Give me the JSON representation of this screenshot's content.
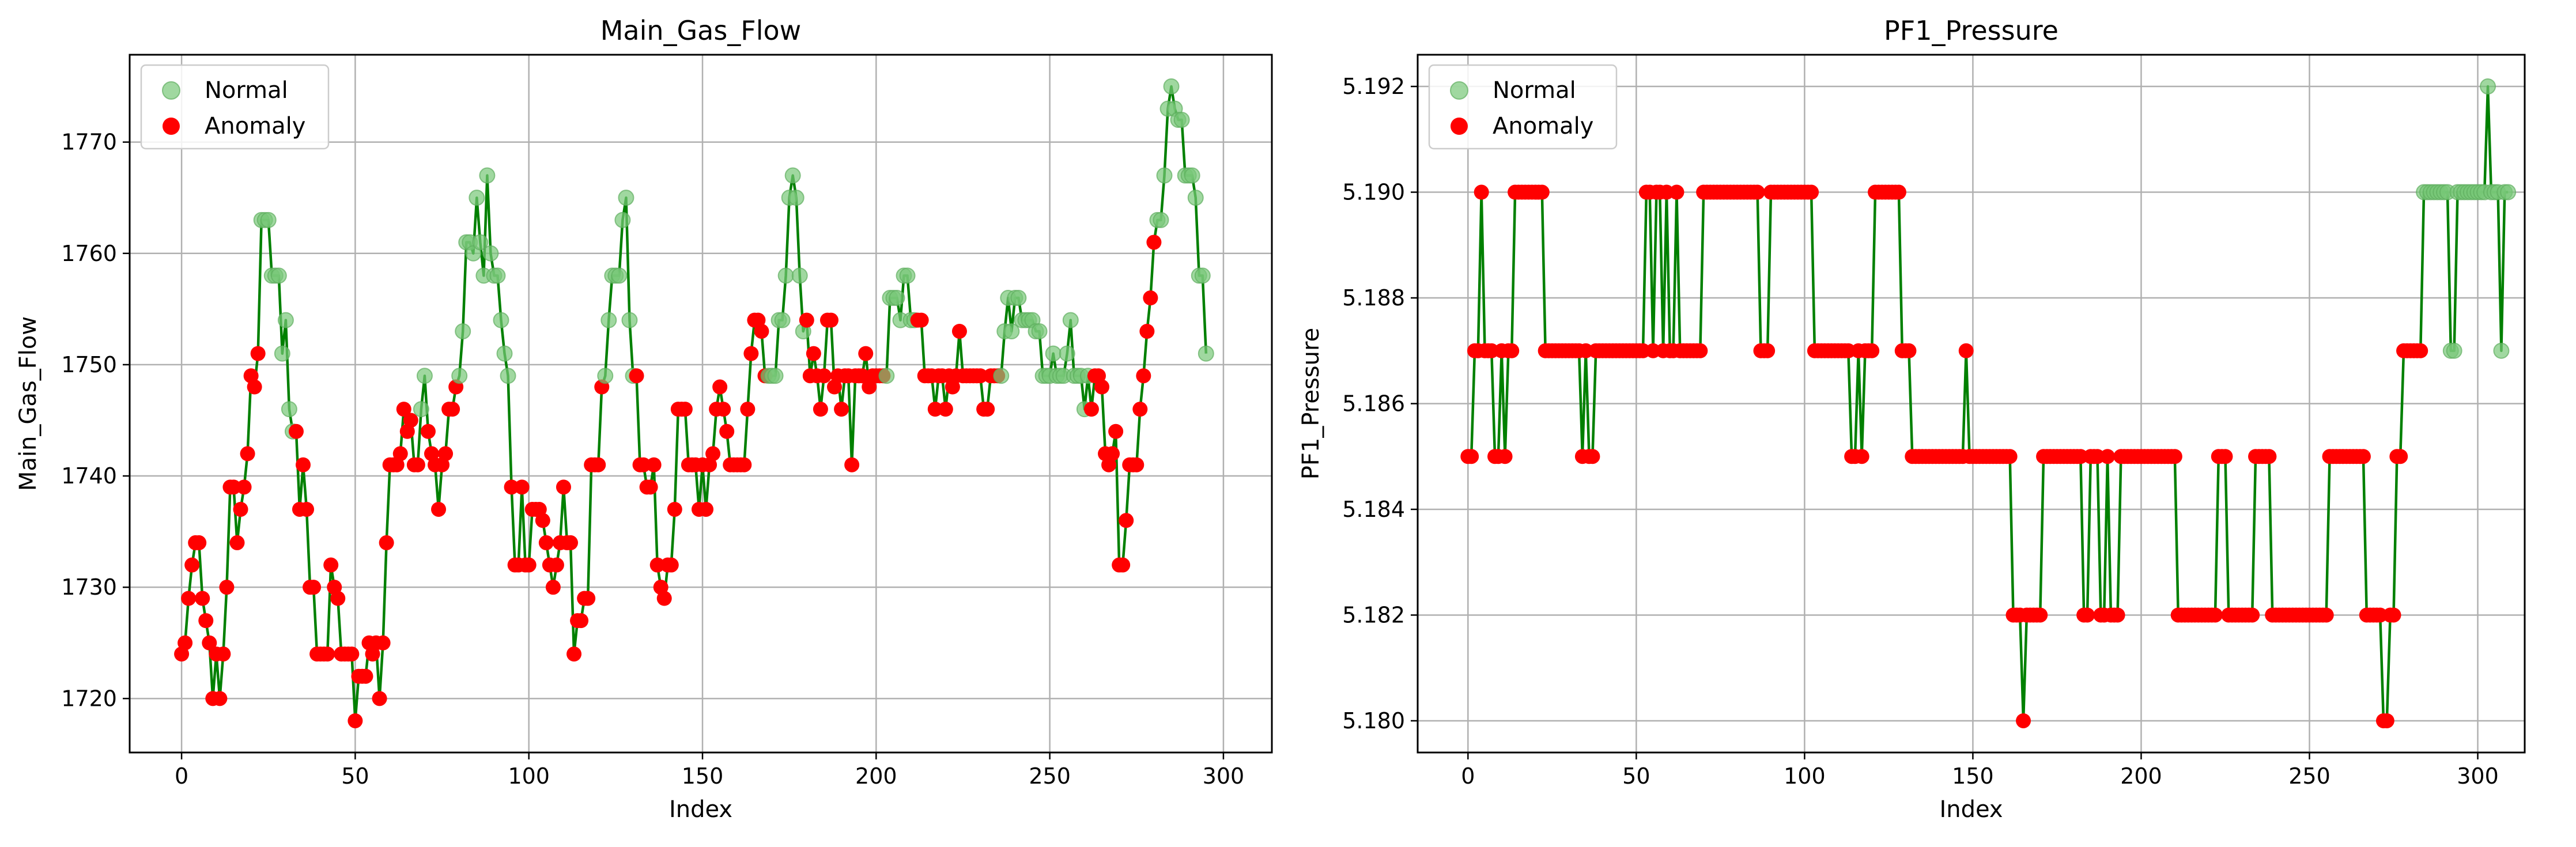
{
  "colors": {
    "line": "#008000",
    "normal": "#78c878",
    "anomaly": "#ff0000",
    "grid": "#b0b0b0"
  },
  "legend": {
    "normal": "Normal",
    "anomaly": "Anomaly"
  },
  "chart_data": [
    {
      "type": "line",
      "title": "Main_Gas_Flow",
      "xlabel": "Index",
      "ylabel": "Main_Gas_Flow",
      "xlim": [
        -14.95,
        313.95
      ],
      "ylim": [
        1715.15,
        1777.85
      ],
      "xticks": [
        0,
        50,
        100,
        150,
        200,
        250,
        300
      ],
      "yticks": [
        1720,
        1730,
        1740,
        1750,
        1760,
        1770
      ],
      "grid": true,
      "legend_position": "top-left",
      "x_start": 0,
      "values": [
        1724,
        1725,
        1729,
        1732,
        1734,
        1734,
        1729,
        1727,
        1725,
        1720,
        1724,
        1720,
        1724,
        1730,
        1739,
        1739,
        1734,
        1737,
        1739,
        1742,
        1749,
        1748,
        1751,
        1763,
        1763,
        1763,
        1758,
        1758,
        1758,
        1751,
        1754,
        1746,
        1744,
        1744,
        1737,
        1741,
        1737,
        1730,
        1730,
        1724,
        1724,
        1724,
        1724,
        1732,
        1730,
        1729,
        1724,
        1724,
        1724,
        1724,
        1718,
        1722,
        1722,
        1722,
        1725,
        1724,
        1725,
        1720,
        1725,
        1734,
        1741,
        1741,
        1741,
        1742,
        1746,
        1744,
        1745,
        1741,
        1741,
        1746,
        1749,
        1744,
        1742,
        1741,
        1737,
        1741,
        1742,
        1746,
        1746,
        1748,
        1749,
        1753,
        1761,
        1761,
        1760,
        1765,
        1761,
        1758,
        1767,
        1760,
        1758,
        1758,
        1754,
        1751,
        1749,
        1739,
        1732,
        1732,
        1739,
        1732,
        1732,
        1737,
        1737,
        1737,
        1736,
        1734,
        1732,
        1730,
        1732,
        1734,
        1739,
        1734,
        1734,
        1724,
        1727,
        1727,
        1729,
        1729,
        1741,
        1741,
        1741,
        1748,
        1749,
        1754,
        1758,
        1758,
        1758,
        1763,
        1765,
        1754,
        1749,
        1749,
        1741,
        1741,
        1739,
        1739,
        1741,
        1732,
        1730,
        1729,
        1732,
        1732,
        1737,
        1746,
        1746,
        1746,
        1741,
        1741,
        1741,
        1737,
        1741,
        1737,
        1741,
        1742,
        1746,
        1748,
        1746,
        1744,
        1741,
        1741,
        1741,
        1741,
        1741,
        1746,
        1751,
        1754,
        1754,
        1753,
        1749,
        1749,
        1749,
        1749,
        1754,
        1754,
        1758,
        1765,
        1767,
        1765,
        1758,
        1753,
        1754,
        1749,
        1751,
        1749,
        1746,
        1749,
        1754,
        1754,
        1748,
        1749,
        1746,
        1749,
        1749,
        1741,
        1749,
        1749,
        1749,
        1751,
        1748,
        1749,
        1749,
        1749,
        1749,
        1749,
        1756,
        1756,
        1756,
        1754,
        1758,
        1758,
        1754,
        1754,
        1754,
        1754,
        1749,
        1749,
        1749,
        1746,
        1749,
        1749,
        1746,
        1749,
        1748,
        1749,
        1753,
        1749,
        1749,
        1749,
        1749,
        1749,
        1749,
        1746,
        1746,
        1749,
        1749,
        1749,
        1749,
        1753,
        1756,
        1753,
        1756,
        1756,
        1754,
        1754,
        1754,
        1754,
        1753,
        1753,
        1749,
        1749,
        1749,
        1751,
        1749,
        1749,
        1749,
        1751,
        1754,
        1749,
        1749,
        1749,
        1746,
        1749,
        1746,
        1749,
        1749,
        1748,
        1742,
        1741,
        1742,
        1744,
        1732,
        1732,
        1736,
        1741,
        1741,
        1741,
        1746,
        1749,
        1753,
        1756,
        1761,
        1763,
        1763,
        1767,
        1773,
        1775,
        1773,
        1772,
        1772,
        1767,
        1767,
        1767,
        1765,
        1758,
        1758,
        1751
      ],
      "anomaly_indices": [
        0,
        1,
        2,
        3,
        4,
        5,
        6,
        7,
        8,
        9,
        10,
        11,
        12,
        13,
        14,
        15,
        16,
        17,
        18,
        19,
        20,
        21,
        22,
        33,
        34,
        35,
        36,
        37,
        38,
        39,
        40,
        41,
        42,
        43,
        44,
        45,
        46,
        47,
        48,
        49,
        50,
        51,
        52,
        53,
        54,
        55,
        56,
        57,
        58,
        59,
        60,
        61,
        62,
        63,
        64,
        65,
        66,
        67,
        68,
        71,
        72,
        73,
        74,
        75,
        76,
        77,
        78,
        79,
        95,
        96,
        97,
        98,
        99,
        100,
        101,
        102,
        103,
        104,
        105,
        106,
        107,
        108,
        109,
        110,
        111,
        112,
        113,
        114,
        115,
        116,
        117,
        118,
        119,
        120,
        121,
        131,
        132,
        133,
        134,
        135,
        136,
        137,
        138,
        139,
        140,
        141,
        142,
        143,
        144,
        145,
        146,
        147,
        148,
        149,
        150,
        151,
        152,
        153,
        154,
        155,
        156,
        157,
        158,
        159,
        160,
        161,
        162,
        163,
        164,
        165,
        166,
        167,
        168,
        180,
        181,
        182,
        183,
        184,
        185,
        186,
        187,
        188,
        189,
        190,
        191,
        192,
        193,
        194,
        195,
        196,
        197,
        198,
        199,
        200,
        201,
        202,
        212,
        213,
        214,
        215,
        216,
        217,
        218,
        219,
        220,
        221,
        222,
        223,
        224,
        225,
        226,
        227,
        228,
        229,
        230,
        231,
        232,
        233,
        234,
        235,
        262,
        263,
        264,
        265,
        266,
        267,
        268,
        269,
        270,
        271,
        272,
        273,
        274,
        275,
        276,
        277,
        278,
        279,
        280
      ]
    },
    {
      "type": "line",
      "title": "PF1_Pressure",
      "xlabel": "Index",
      "ylabel": "PF1_Pressure",
      "xlim": [
        -14.95,
        313.95
      ],
      "ylim": [
        5.1794,
        5.1926
      ],
      "xticks": [
        0,
        50,
        100,
        150,
        200,
        250,
        300
      ],
      "yticks": [
        5.18,
        5.182,
        5.184,
        5.186,
        5.188,
        5.19,
        5.192
      ],
      "yticks_labels": [
        "5.180",
        "5.182",
        "5.184",
        "5.186",
        "5.188",
        "5.190",
        "5.192"
      ],
      "grid": true,
      "legend_position": "top-left",
      "x_start": 0,
      "values": [
        5.185,
        5.185,
        5.187,
        5.187,
        5.19,
        5.187,
        5.187,
        5.187,
        5.185,
        5.185,
        5.187,
        5.185,
        5.187,
        5.187,
        5.19,
        5.19,
        5.19,
        5.19,
        5.19,
        5.19,
        5.19,
        5.19,
        5.19,
        5.187,
        5.187,
        5.187,
        5.187,
        5.187,
        5.187,
        5.187,
        5.187,
        5.187,
        5.187,
        5.187,
        5.185,
        5.187,
        5.185,
        5.185,
        5.187,
        5.187,
        5.187,
        5.187,
        5.187,
        5.187,
        5.187,
        5.187,
        5.187,
        5.187,
        5.187,
        5.187,
        5.187,
        5.187,
        5.187,
        5.19,
        5.19,
        5.187,
        5.19,
        5.19,
        5.187,
        5.19,
        5.187,
        5.187,
        5.19,
        5.187,
        5.187,
        5.187,
        5.187,
        5.187,
        5.187,
        5.187,
        5.19,
        5.19,
        5.19,
        5.19,
        5.19,
        5.19,
        5.19,
        5.19,
        5.19,
        5.19,
        5.19,
        5.19,
        5.19,
        5.19,
        5.19,
        5.19,
        5.19,
        5.187,
        5.187,
        5.187,
        5.19,
        5.19,
        5.19,
        5.19,
        5.19,
        5.19,
        5.19,
        5.19,
        5.19,
        5.19,
        5.19,
        5.19,
        5.19,
        5.187,
        5.187,
        5.187,
        5.187,
        5.187,
        5.187,
        5.187,
        5.187,
        5.187,
        5.187,
        5.187,
        5.185,
        5.185,
        5.187,
        5.185,
        5.187,
        5.187,
        5.187,
        5.19,
        5.19,
        5.19,
        5.19,
        5.19,
        5.19,
        5.19,
        5.19,
        5.187,
        5.187,
        5.187,
        5.185,
        5.185,
        5.185,
        5.185,
        5.185,
        5.185,
        5.185,
        5.185,
        5.185,
        5.185,
        5.185,
        5.185,
        5.185,
        5.185,
        5.185,
        5.185,
        5.187,
        5.185,
        5.185,
        5.185,
        5.185,
        5.185,
        5.185,
        5.185,
        5.185,
        5.185,
        5.185,
        5.185,
        5.185,
        5.185,
        5.182,
        5.182,
        5.182,
        5.18,
        5.182,
        5.182,
        5.182,
        5.182,
        5.182,
        5.185,
        5.185,
        5.185,
        5.185,
        5.185,
        5.185,
        5.185,
        5.185,
        5.185,
        5.185,
        5.185,
        5.185,
        5.182,
        5.182,
        5.185,
        5.185,
        5.185,
        5.182,
        5.182,
        5.185,
        5.182,
        5.182,
        5.182,
        5.185,
        5.185,
        5.185,
        5.185,
        5.185,
        5.185,
        5.185,
        5.185,
        5.185,
        5.185,
        5.185,
        5.185,
        5.185,
        5.185,
        5.185,
        5.185,
        5.185,
        5.182,
        5.182,
        5.182,
        5.182,
        5.182,
        5.182,
        5.182,
        5.182,
        5.182,
        5.182,
        5.182,
        5.182,
        5.185,
        5.185,
        5.185,
        5.182,
        5.182,
        5.182,
        5.182,
        5.182,
        5.182,
        5.182,
        5.182,
        5.185,
        5.185,
        5.185,
        5.185,
        5.185,
        5.182,
        5.182,
        5.182,
        5.182,
        5.182,
        5.182,
        5.182,
        5.182,
        5.182,
        5.182,
        5.182,
        5.182,
        5.182,
        5.182,
        5.182,
        5.182,
        5.182,
        5.185,
        5.185,
        5.185,
        5.185,
        5.185,
        5.185,
        5.185,
        5.185,
        5.185,
        5.185,
        5.185,
        5.182,
        5.182,
        5.182,
        5.182,
        5.182,
        5.18,
        5.18,
        5.182,
        5.182,
        5.185,
        5.185,
        5.187,
        5.187,
        5.187,
        5.187,
        5.187,
        5.187,
        5.19,
        5.19,
        5.19,
        5.19,
        5.19,
        5.19,
        5.19,
        5.19,
        5.187,
        5.187,
        5.19,
        5.19,
        5.19,
        5.19,
        5.19,
        5.19,
        5.19,
        5.19,
        5.19,
        5.192,
        5.19,
        5.19,
        5.19,
        5.187,
        5.19,
        5.19
      ],
      "anomaly_indices": [
        0,
        1,
        2,
        3,
        4,
        5,
        6,
        7,
        8,
        9,
        10,
        11,
        12,
        13,
        14,
        15,
        16,
        17,
        18,
        19,
        20,
        21,
        22,
        23,
        24,
        25,
        26,
        27,
        28,
        29,
        30,
        31,
        32,
        33,
        34,
        35,
        36,
        37,
        38,
        39,
        40,
        41,
        42,
        43,
        44,
        45,
        46,
        47,
        48,
        49,
        50,
        51,
        52,
        53,
        54,
        55,
        56,
        57,
        58,
        59,
        60,
        61,
        62,
        63,
        64,
        65,
        66,
        67,
        68,
        69,
        70,
        71,
        72,
        73,
        74,
        75,
        76,
        77,
        78,
        79,
        80,
        81,
        82,
        83,
        84,
        85,
        86,
        87,
        88,
        89,
        90,
        91,
        92,
        93,
        94,
        95,
        96,
        97,
        98,
        99,
        100,
        101,
        102,
        103,
        104,
        105,
        106,
        107,
        108,
        109,
        110,
        111,
        112,
        113,
        114,
        115,
        116,
        117,
        118,
        119,
        120,
        121,
        122,
        123,
        124,
        125,
        126,
        127,
        128,
        129,
        130,
        131,
        132,
        133,
        134,
        135,
        136,
        137,
        138,
        139,
        140,
        141,
        142,
        143,
        144,
        145,
        146,
        147,
        148,
        149,
        150,
        151,
        152,
        153,
        154,
        155,
        156,
        157,
        158,
        159,
        160,
        161,
        162,
        163,
        164,
        165,
        166,
        167,
        168,
        169,
        170,
        171,
        172,
        173,
        174,
        175,
        176,
        177,
        178,
        179,
        180,
        181,
        182,
        183,
        184,
        185,
        186,
        187,
        188,
        189,
        190,
        191,
        192,
        193,
        194,
        195,
        196,
        197,
        198,
        199,
        200,
        201,
        202,
        203,
        204,
        205,
        206,
        207,
        208,
        209,
        210,
        211,
        212,
        213,
        214,
        215,
        216,
        217,
        218,
        219,
        220,
        221,
        222,
        223,
        224,
        225,
        226,
        227,
        228,
        229,
        230,
        231,
        232,
        233,
        234,
        235,
        236,
        237,
        238,
        239,
        240,
        241,
        242,
        243,
        244,
        245,
        246,
        247,
        248,
        249,
        250,
        251,
        252,
        253,
        254,
        255,
        256,
        257,
        258,
        259,
        260,
        261,
        262,
        263,
        264,
        265,
        266,
        267,
        268,
        269,
        270,
        271,
        272,
        273,
        274,
        275,
        276,
        277,
        278,
        279,
        280,
        281,
        282,
        283
      ]
    }
  ]
}
